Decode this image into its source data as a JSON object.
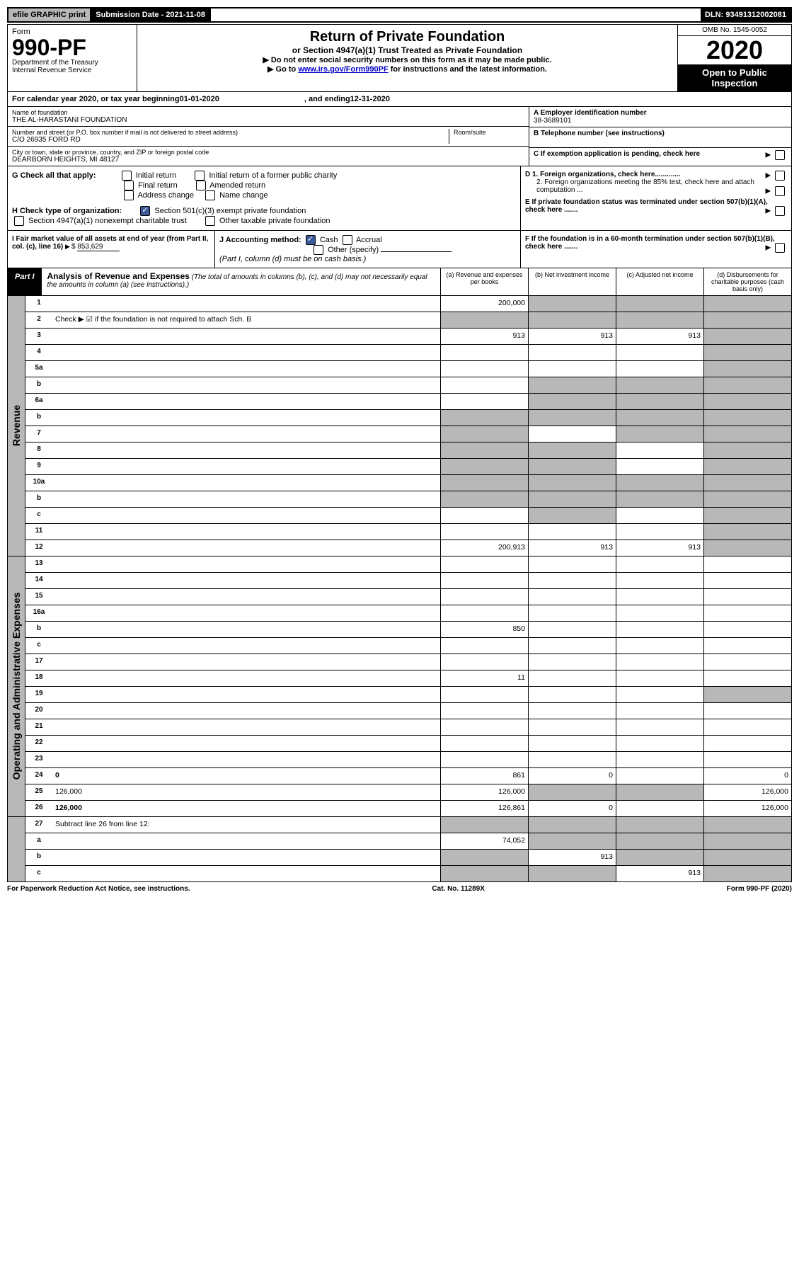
{
  "topbar": {
    "efile": "efile GRAPHIC print",
    "submission": "Submission Date - 2021-11-08",
    "dln": "DLN: 93491312002081"
  },
  "header": {
    "form_label": "Form",
    "form_number": "990-PF",
    "dept": "Department of the Treasury",
    "irs": "Internal Revenue Service",
    "title": "Return of Private Foundation",
    "subtitle": "or Section 4947(a)(1) Trust Treated as Private Foundation",
    "instr1": "▶ Do not enter social security numbers on this form as it may be made public.",
    "instr2_pre": "▶ Go to ",
    "instr2_link": "www.irs.gov/Form990PF",
    "instr2_post": " for instructions and the latest information.",
    "omb": "OMB No. 1545-0052",
    "year": "2020",
    "open": "Open to Public Inspection"
  },
  "calyear": {
    "pre": "For calendar year 2020, or tax year beginning ",
    "begin": "01-01-2020",
    "mid": ", and ending ",
    "end": "12-31-2020"
  },
  "entity": {
    "name_label": "Name of foundation",
    "name": "THE AL-HARASTANI FOUNDATION",
    "addr_label": "Number and street (or P.O. box number if mail is not delivered to street address)",
    "addr": "C/O 26935 FORD RD",
    "room_label": "Room/suite",
    "city_label": "City or town, state or province, country, and ZIP or foreign postal code",
    "city": "DEARBORN HEIGHTS, MI  48127",
    "a_label": "A Employer identification number",
    "a_val": "38-3689101",
    "b_label": "B Telephone number (see instructions)",
    "c_label": "C If exemption application is pending, check here",
    "d1": "D 1. Foreign organizations, check here.............",
    "d2": "2. Foreign organizations meeting the 85% test, check here and attach computation ...",
    "e": "E  If private foundation status was terminated under section 507(b)(1)(A), check here .......",
    "f": "F  If the foundation is in a 60-month termination under section 507(b)(1)(B), check here .......",
    "g_label": "G Check all that apply:",
    "g_opts": [
      "Initial return",
      "Initial return of a former public charity",
      "Final return",
      "Amended return",
      "Address change",
      "Name change"
    ],
    "h_label": "H Check type of organization:",
    "h_opt1": "Section 501(c)(3) exempt private foundation",
    "h_opt2": "Section 4947(a)(1) nonexempt charitable trust",
    "h_opt3": "Other taxable private foundation",
    "i_label": "I Fair market value of all assets at end of year (from Part II, col. (c), line 16)",
    "i_val": "853,629",
    "j_label": "J Accounting method:",
    "j_cash": "Cash",
    "j_accrual": "Accrual",
    "j_other": "Other (specify)",
    "j_note": "(Part I, column (d) must be on cash basis.)"
  },
  "part1": {
    "label": "Part I",
    "title": "Analysis of Revenue and Expenses",
    "note": "(The total of amounts in columns (b), (c), and (d) may not necessarily equal the amounts in column (a) (see instructions).)",
    "col_a": "(a) Revenue and expenses per books",
    "col_b": "(b) Net investment income",
    "col_c": "(c) Adjusted net income",
    "col_d": "(d) Disbursements for charitable purposes (cash basis only)"
  },
  "side": {
    "revenue": "Revenue",
    "expenses": "Operating and Administrative Expenses"
  },
  "rows": [
    {
      "n": "1",
      "d": "",
      "a": "200,000",
      "b": "",
      "c": "",
      "bg": true,
      "cg": true,
      "dg": true
    },
    {
      "n": "2",
      "d": "Check ▶ ☑ if the foundation is not required to attach Sch. B",
      "nocells": true
    },
    {
      "n": "3",
      "d": "",
      "a": "913",
      "b": "913",
      "c": "913",
      "dg": true
    },
    {
      "n": "4",
      "d": "",
      "a": "",
      "b": "",
      "c": "",
      "dg": true
    },
    {
      "n": "5a",
      "d": "",
      "a": "",
      "b": "",
      "c": "",
      "dg": true
    },
    {
      "n": "b",
      "d": "",
      "a": "",
      "b": "",
      "c": "",
      "bg": true,
      "cg": true,
      "dg": true
    },
    {
      "n": "6a",
      "d": "",
      "a": "",
      "b": "",
      "c": "",
      "bg": true,
      "cg": true,
      "dg": true
    },
    {
      "n": "b",
      "d": "",
      "a": "",
      "b": "",
      "c": "",
      "ag": true,
      "bg": true,
      "cg": true,
      "dg": true
    },
    {
      "n": "7",
      "d": "",
      "a": "",
      "b": "",
      "c": "",
      "ag": true,
      "cg": true,
      "dg": true
    },
    {
      "n": "8",
      "d": "",
      "a": "",
      "b": "",
      "c": "",
      "ag": true,
      "bg": true,
      "dg": true
    },
    {
      "n": "9",
      "d": "",
      "a": "",
      "b": "",
      "c": "",
      "ag": true,
      "bg": true,
      "dg": true
    },
    {
      "n": "10a",
      "d": "",
      "a": "",
      "b": "",
      "c": "",
      "ag": true,
      "bg": true,
      "cg": true,
      "dg": true
    },
    {
      "n": "b",
      "d": "",
      "a": "",
      "b": "",
      "c": "",
      "ag": true,
      "bg": true,
      "cg": true,
      "dg": true
    },
    {
      "n": "c",
      "d": "",
      "a": "",
      "b": "",
      "c": "",
      "bg": true,
      "dg": true
    },
    {
      "n": "11",
      "d": "",
      "a": "",
      "b": "",
      "c": "",
      "dg": true
    },
    {
      "n": "12",
      "d": "",
      "bold": true,
      "a": "200,913",
      "b": "913",
      "c": "913",
      "dg": true
    }
  ],
  "exp_rows": [
    {
      "n": "13",
      "d": "",
      "a": "",
      "b": "",
      "c": ""
    },
    {
      "n": "14",
      "d": "",
      "a": "",
      "b": "",
      "c": ""
    },
    {
      "n": "15",
      "d": "",
      "a": "",
      "b": "",
      "c": ""
    },
    {
      "n": "16a",
      "d": "",
      "a": "",
      "b": "",
      "c": ""
    },
    {
      "n": "b",
      "d": "",
      "a": "850",
      "b": "",
      "c": ""
    },
    {
      "n": "c",
      "d": "",
      "a": "",
      "b": "",
      "c": ""
    },
    {
      "n": "17",
      "d": "",
      "a": "",
      "b": "",
      "c": ""
    },
    {
      "n": "18",
      "d": "",
      "a": "11",
      "b": "",
      "c": ""
    },
    {
      "n": "19",
      "d": "",
      "a": "",
      "b": "",
      "c": "",
      "dg": true
    },
    {
      "n": "20",
      "d": "",
      "a": "",
      "b": "",
      "c": ""
    },
    {
      "n": "21",
      "d": "",
      "a": "",
      "b": "",
      "c": ""
    },
    {
      "n": "22",
      "d": "",
      "a": "",
      "b": "",
      "c": ""
    },
    {
      "n": "23",
      "d": "",
      "a": "",
      "b": "",
      "c": ""
    },
    {
      "n": "24",
      "d": "0",
      "bold": true,
      "a": "861",
      "b": "0",
      "c": ""
    },
    {
      "n": "25",
      "d": "126,000",
      "a": "126,000",
      "b": "",
      "c": "",
      "bg": true,
      "cg": true
    },
    {
      "n": "26",
      "d": "126,000",
      "bold": true,
      "a": "126,861",
      "b": "0",
      "c": ""
    }
  ],
  "bottom_rows": [
    {
      "n": "27",
      "d": "Subtract line 26 from line 12:",
      "nocells_grey": true
    },
    {
      "n": "a",
      "d": "",
      "bold": true,
      "a": "74,052",
      "b": "",
      "c": "",
      "bg": true,
      "cg": true,
      "dg": true
    },
    {
      "n": "b",
      "d": "",
      "bold": true,
      "a": "",
      "b": "913",
      "c": "",
      "ag": true,
      "cg": true,
      "dg": true
    },
    {
      "n": "c",
      "d": "",
      "bold": true,
      "a": "",
      "b": "",
      "c": "913",
      "ag": true,
      "bg": true,
      "dg": true
    }
  ],
  "footer": {
    "left": "For Paperwork Reduction Act Notice, see instructions.",
    "mid": "Cat. No. 11289X",
    "right": "Form 990-PF (2020)"
  }
}
